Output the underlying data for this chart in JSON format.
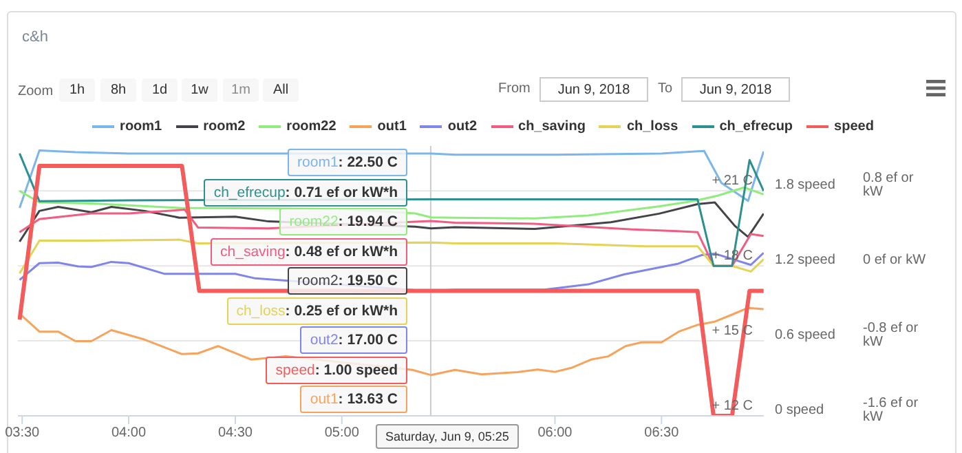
{
  "chart_data": {
    "type": "line",
    "title": "c&h",
    "xlim": [
      3.48,
      6.98
    ],
    "xticks": [
      {
        "value": 3.5,
        "label": "03:30"
      },
      {
        "value": 4,
        "label": "04:00"
      },
      {
        "value": 4.5,
        "label": "04:30"
      },
      {
        "value": 5,
        "label": "05:00"
      },
      {
        "value": 6,
        "label": "06:00"
      },
      {
        "value": 6.5,
        "label": "06:30"
      }
    ],
    "ylim": [
      12,
      22.8
    ],
    "yticks": [
      {
        "value": 12,
        "label": "+ 12 C"
      },
      {
        "value": 15,
        "label": "+ 15 C"
      },
      {
        "value": 18,
        "label": "+ 18 C"
      },
      {
        "value": 21,
        "label": "+ 21 C"
      }
    ],
    "y2lim": [
      0,
      2.16
    ],
    "y2ticks": [
      {
        "value": 0,
        "label": "0 speed"
      },
      {
        "value": 0.6,
        "label": "0.6 speed"
      },
      {
        "value": 1.2,
        "label": "1.2 speed"
      },
      {
        "value": 1.8,
        "label": "1.8 speed"
      }
    ],
    "y3lim": [
      -1.6,
      1.28
    ],
    "y3ticks": [
      {
        "value": -1.6,
        "label": "-1.6 ef or kW"
      },
      {
        "value": -0.8,
        "label": "-0.8 ef or kW"
      },
      {
        "value": 0,
        "label": "0 ef or kW"
      },
      {
        "value": 0.8,
        "label": "0.8 ef or kW"
      }
    ],
    "grid": "y",
    "legend": "top",
    "ref_lines": [
      {
        "axis": "x",
        "value": 5.417,
        "color": "#cccccc"
      }
    ],
    "series": [
      {
        "name": "room1",
        "color": "#7cb5ec",
        "axis": "y",
        "x": [
          3.488,
          3.581,
          3.75,
          4.0,
          4.5,
          5.419,
          5.531,
          6.0,
          6.5,
          6.7,
          6.781,
          6.906,
          6.979
        ],
        "values": [
          20.32,
          22.62,
          22.55,
          22.5,
          22.5,
          22.5,
          22.45,
          22.45,
          22.5,
          22.6,
          21.32,
          20.6,
          22.58
        ]
      },
      {
        "name": "room2",
        "color": "#434348",
        "axis": "y",
        "x": [
          3.488,
          3.581,
          3.669,
          3.825,
          3.919,
          4.075,
          4.238,
          4.5,
          4.656,
          5.344,
          5.419,
          5.531,
          5.906,
          6.263,
          6.488,
          6.669,
          6.75,
          6.844,
          6.906,
          6.979
        ],
        "values": [
          18.97,
          20.2,
          20.36,
          20.15,
          20.36,
          20.2,
          19.93,
          19.97,
          19.78,
          19.57,
          19.5,
          19.55,
          19.48,
          19.75,
          20.09,
          20.47,
          20.54,
          19.6,
          19.16,
          20.09
        ]
      },
      {
        "name": "room22",
        "color": "#90ed7d",
        "axis": "y",
        "x": [
          3.488,
          3.581,
          3.825,
          4.238,
          4.656,
          5.0,
          5.344,
          5.419,
          5.531,
          5.906,
          6.156,
          6.488,
          6.656,
          6.763,
          6.888,
          6.979
        ],
        "values": [
          21.0,
          20.54,
          20.5,
          20.32,
          20.3,
          20.28,
          20.1,
          19.94,
          19.93,
          19.9,
          20.02,
          20.38,
          20.6,
          20.81,
          21.14,
          20.86
        ]
      },
      {
        "name": "out1",
        "color": "#f7a35c",
        "axis": "y",
        "x": [
          3.488,
          3.581,
          3.669,
          3.75,
          3.825,
          3.919,
          4.075,
          4.25,
          4.325,
          4.419,
          4.575,
          4.738,
          5.331,
          5.419,
          5.531,
          5.656,
          5.825,
          5.919,
          6.0,
          6.081,
          6.169,
          6.25,
          6.331,
          6.406,
          6.5,
          6.581,
          6.669,
          6.75,
          6.831,
          6.906,
          6.979
        ],
        "values": [
          16.09,
          15.37,
          15.37,
          14.99,
          14.99,
          15.43,
          15.05,
          14.47,
          14.5,
          14.79,
          14.25,
          14.38,
          13.84,
          13.63,
          13.84,
          13.66,
          13.75,
          13.85,
          13.76,
          13.93,
          14.25,
          14.38,
          14.79,
          14.94,
          14.94,
          15.37,
          15.64,
          15.77,
          16.05,
          16.32,
          16.27
        ]
      },
      {
        "name": "out2",
        "color": "#8085e9",
        "axis": "y",
        "x": [
          3.488,
          3.581,
          3.669,
          3.763,
          3.825,
          3.919,
          4.0,
          4.169,
          4.5,
          4.594,
          5.344,
          5.419,
          5.531,
          5.95,
          6.156,
          6.325,
          6.575,
          6.688,
          6.75,
          6.919,
          6.979
        ],
        "values": [
          17.44,
          18.11,
          18.13,
          17.98,
          17.96,
          18.16,
          18.11,
          17.68,
          17.68,
          17.5,
          17.03,
          17.0,
          17.05,
          17.05,
          17.26,
          17.66,
          18.08,
          18.43,
          18.49,
          18.04,
          18.52
        ]
      },
      {
        "name": "ch_saving",
        "color": "#f15c80",
        "axis": "y3",
        "x": [
          3.488,
          3.581,
          3.825,
          4.0,
          4.263,
          4.325,
          4.656,
          5.419,
          5.531,
          5.9,
          6.363,
          6.575,
          6.669,
          6.744,
          6.831,
          6.919,
          6.979
        ],
        "values": [
          0.36,
          0.5,
          0.56,
          0.56,
          0.6,
          0.41,
          0.4,
          0.48,
          0.46,
          0.45,
          0.39,
          0.37,
          0.36,
          0,
          0,
          0.34,
          0.32
        ]
      },
      {
        "name": "ch_loss",
        "color": "#e4d354",
        "axis": "y3",
        "x": [
          3.488,
          3.581,
          3.825,
          4.238,
          4.325,
          5.419,
          5.531,
          6.0,
          6.425,
          6.669,
          6.744,
          6.831,
          6.919,
          6.979
        ],
        "values": [
          -0.08,
          0.27,
          0.27,
          0.28,
          0.24,
          0.25,
          0.24,
          0.24,
          0.21,
          0.21,
          0,
          0,
          -0.06,
          0.07
        ]
      },
      {
        "name": "ch_efrecup",
        "color": "#2b908f",
        "axis": "y3",
        "x": [
          3.488,
          3.581,
          4.0,
          5.419,
          5.531,
          6.0,
          6.669,
          6.744,
          6.831,
          6.913,
          6.979
        ],
        "values": [
          1.2,
          0.69,
          0.7,
          0.71,
          0.71,
          0.71,
          0.71,
          0,
          0,
          1.13,
          0.8
        ]
      },
      {
        "name": "speed",
        "color": "#f45b5b",
        "axis": "y2",
        "x": [
          3.488,
          3.581,
          4.25,
          4.331,
          5.419,
          6.669,
          6.744,
          6.831,
          6.913,
          6.979
        ],
        "values": [
          0.77,
          2.0,
          2.0,
          1.0,
          1.0,
          1.0,
          0,
          0,
          1.0,
          1.0
        ]
      }
    ],
    "annotations": [
      "Zoom",
      "1h",
      "8h",
      "1d",
      "1w",
      "1m",
      "All",
      "From",
      "Jun 9, 2018",
      "To",
      "Jun 9, 2018",
      "room1: 22.50 C",
      "ch_efrecup: 0.71 ef or kW*h",
      "room22: 19.94 C",
      "ch_saving: 0.48 ef or kW*h",
      "room2: 19.50 C",
      "ch_loss: 0.25 ef or kW*h",
      "out2: 17.00 C",
      "speed: 1.00 speed",
      "out1: 13.63 C",
      "Saturday, Jun 9, 05:25"
    ]
  }
}
